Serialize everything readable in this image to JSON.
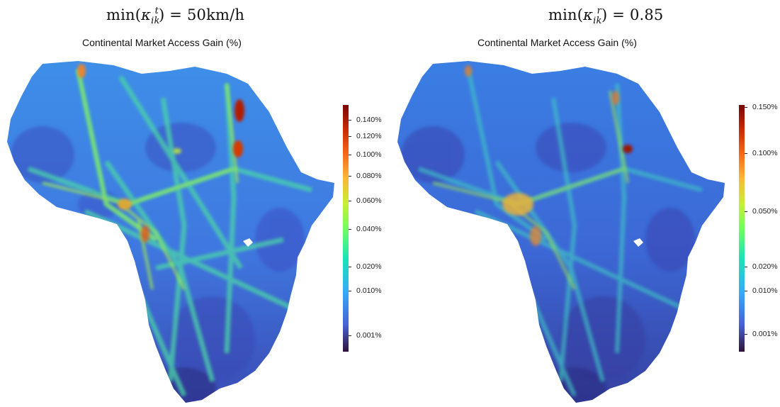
{
  "panels": [
    {
      "math_title_prefix": "min(",
      "kappa": "κ",
      "sup": "t",
      "sub": "ik",
      "math_title_suffix": ") = 50km/h",
      "map_title": "Continental Market Access Gain (%)",
      "legend": {
        "colors": [
          "#30123b",
          "#4662d7",
          "#36aaf9",
          "#1ae4b6",
          "#72fe5e",
          "#c7ef34",
          "#fbb938",
          "#f56918",
          "#c92a04",
          "#7a0403"
        ],
        "ticks": [
          "0.140%",
          "0.120%",
          "0.100%",
          "0.080%",
          "0.060%",
          "0.040%",
          "0.020%",
          "0.010%",
          "0.001%"
        ]
      }
    },
    {
      "math_title_prefix": "min(",
      "kappa": "κ",
      "sup": "r",
      "sub": "ik",
      "math_title_suffix": ") = 0.85",
      "map_title": "Continental Market Access Gain (%)",
      "legend": {
        "colors": [
          "#30123b",
          "#4662d7",
          "#36aaf9",
          "#1ae4b6",
          "#72fe5e",
          "#c7ef34",
          "#fbb938",
          "#f56918",
          "#c92a04",
          "#7a0403"
        ],
        "ticks": [
          "0.150%",
          "0.100%",
          "0.050%",
          "0.020%",
          "0.010%",
          "0.001%"
        ]
      }
    }
  ]
}
